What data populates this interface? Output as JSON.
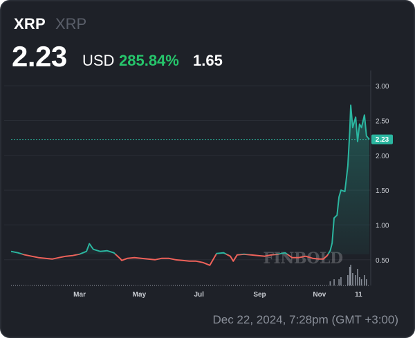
{
  "header": {
    "symbol": "XRP",
    "name": "XRP",
    "price": "2.23",
    "currency": "USD",
    "change_pct": "285.84%",
    "change_abs": "1.65"
  },
  "timestamp": "Dec 22, 2024, 7:28pm (GMT +3:00)",
  "watermark": "FINBOLD",
  "price_label": "2.23",
  "colors": {
    "background": "#1e2128",
    "up_line": "#2bb6a0",
    "down_line": "#f0625a",
    "change_green": "#26c56b",
    "price_tag": "#2bb6a0"
  },
  "chart_data": {
    "type": "line",
    "title": "",
    "xlabel": "",
    "ylabel": "",
    "ylim": [
      0.13,
      3.22
    ],
    "y_ticks": [
      "0.50",
      "1.00",
      "1.50",
      "2.00",
      "2.50",
      "3.00"
    ],
    "x_tick_labels": [
      "Mar",
      "May",
      "Jul",
      "Sep",
      "Nov",
      "11"
    ],
    "x_tick_positions": [
      "2024-03-01",
      "2024-05-01",
      "2024-07-01",
      "2024-09-01",
      "2024-11-01",
      "2024-12-11"
    ],
    "x_range": [
      "2023-12-22",
      "2024-12-22"
    ],
    "baseline_price": 0.58,
    "current_price": 2.23,
    "series": [
      {
        "x": [
          "2023-12-22",
          "2023-12-29",
          "2024-01-05",
          "2024-01-12",
          "2024-01-19",
          "2024-01-26",
          "2024-02-02",
          "2024-02-09",
          "2024-02-16",
          "2024-02-23",
          "2024-03-01",
          "2024-03-08",
          "2024-03-11",
          "2024-03-15",
          "2024-03-22",
          "2024-03-29",
          "2024-04-05",
          "2024-04-12",
          "2024-04-13",
          "2024-04-19",
          "2024-04-26",
          "2024-05-03",
          "2024-05-10",
          "2024-05-17",
          "2024-05-24",
          "2024-05-31",
          "2024-06-07",
          "2024-06-14",
          "2024-06-21",
          "2024-06-28",
          "2024-07-05",
          "2024-07-12",
          "2024-07-19",
          "2024-07-26",
          "2024-08-02",
          "2024-08-05",
          "2024-08-09",
          "2024-08-16",
          "2024-08-23",
          "2024-08-30",
          "2024-09-06",
          "2024-09-13",
          "2024-09-20",
          "2024-09-27",
          "2024-10-04",
          "2024-10-11",
          "2024-10-18",
          "2024-10-25",
          "2024-11-01",
          "2024-11-05",
          "2024-11-09",
          "2024-11-12",
          "2024-11-14",
          "2024-11-16",
          "2024-11-19",
          "2024-11-21",
          "2024-11-23",
          "2024-11-27",
          "2024-11-30",
          "2024-12-02",
          "2024-12-03",
          "2024-12-05",
          "2024-12-08",
          "2024-12-10",
          "2024-12-12",
          "2024-12-14",
          "2024-12-17",
          "2024-12-19",
          "2024-12-22"
        ],
        "values": [
          0.62,
          0.6,
          0.57,
          0.55,
          0.53,
          0.52,
          0.51,
          0.53,
          0.55,
          0.56,
          0.58,
          0.62,
          0.73,
          0.65,
          0.62,
          0.63,
          0.6,
          0.51,
          0.49,
          0.52,
          0.53,
          0.52,
          0.51,
          0.5,
          0.52,
          0.52,
          0.5,
          0.49,
          0.48,
          0.48,
          0.46,
          0.42,
          0.59,
          0.6,
          0.55,
          0.48,
          0.57,
          0.58,
          0.57,
          0.56,
          0.55,
          0.57,
          0.58,
          0.6,
          0.53,
          0.53,
          0.55,
          0.52,
          0.51,
          0.51,
          0.56,
          0.63,
          0.74,
          1.1,
          1.14,
          1.4,
          1.5,
          1.48,
          1.85,
          2.35,
          2.72,
          2.4,
          2.55,
          2.2,
          2.45,
          2.4,
          2.58,
          2.28,
          2.23
        ]
      }
    ],
    "volume": {
      "x": [
        "2024-11-12",
        "2024-11-16",
        "2024-11-21",
        "2024-11-23",
        "2024-11-30",
        "2024-12-02",
        "2024-12-03",
        "2024-12-05",
        "2024-12-08",
        "2024-12-10",
        "2024-12-12",
        "2024-12-14",
        "2024-12-17",
        "2024-12-19"
      ],
      "values": [
        0.2,
        0.3,
        0.3,
        0.4,
        0.5,
        0.9,
        1.0,
        0.6,
        0.5,
        0.8,
        0.4,
        0.3,
        0.5,
        0.3
      ]
    }
  }
}
